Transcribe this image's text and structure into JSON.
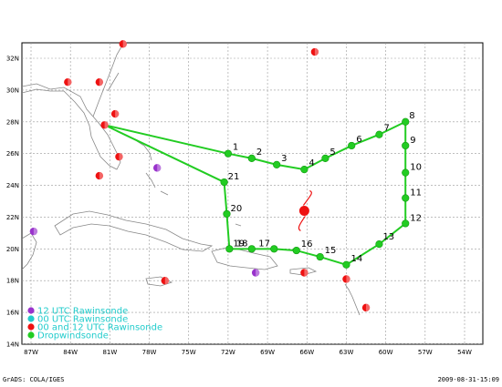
{
  "map": {
    "lon_labels": [
      "87W",
      "84W",
      "81W",
      "78W",
      "75W",
      "72W",
      "69W",
      "66W",
      "63W",
      "60W",
      "57W",
      "54W"
    ],
    "lat_labels": [
      "32N",
      "30N",
      "28N",
      "26N",
      "24N",
      "22N",
      "20N",
      "18N",
      "16N",
      "14N"
    ],
    "track_color": "#22cc22",
    "waypoints": [
      {
        "label": "1",
        "lat": 26.0,
        "lon": -72.0
      },
      {
        "label": "2",
        "lat": 25.7,
        "lon": -70.2
      },
      {
        "label": "3",
        "lat": 25.3,
        "lon": -68.3
      },
      {
        "label": "4",
        "lat": 25.0,
        "lon": -66.2
      },
      {
        "label": "5",
        "lat": 25.7,
        "lon": -64.6
      },
      {
        "label": "6",
        "lat": 26.5,
        "lon": -62.6
      },
      {
        "label": "7",
        "lat": 27.2,
        "lon": -60.5
      },
      {
        "label": "8",
        "lat": 28.0,
        "lon": -58.5
      },
      {
        "label": "9",
        "lat": 26.5,
        "lon": -58.5
      },
      {
        "label": "10",
        "lat": 24.8,
        "lon": -58.5
      },
      {
        "label": "11",
        "lat": 23.2,
        "lon": -58.5
      },
      {
        "label": "12",
        "lat": 21.6,
        "lon": -58.5
      },
      {
        "label": "13",
        "lat": 20.3,
        "lon": -60.5
      },
      {
        "label": "14",
        "lat": 19.0,
        "lon": -63.0
      },
      {
        "label": "15",
        "lat": 19.5,
        "lon": -65.0
      },
      {
        "label": "16",
        "lat": 19.9,
        "lon": -66.8
      },
      {
        "label": "17",
        "lat": 20.0,
        "lon": -68.5
      },
      {
        "label": "18",
        "lat": 20.0,
        "lon": -70.2
      },
      {
        "label": "19",
        "lat": 20.0,
        "lon": -71.9
      },
      {
        "label": "20",
        "lat": 22.2,
        "lon": -72.1
      },
      {
        "label": "21",
        "lat": 24.2,
        "lon": -72.3
      }
    ],
    "origin": {
      "lat": 27.8,
      "lon": -81.4
    },
    "storm": {
      "lat": 22.4,
      "lon": -66.2
    },
    "stations_00_12": [
      {
        "lat": 32.9,
        "lon": -80.0
      },
      {
        "lat": 32.4,
        "lon": -65.4
      },
      {
        "lat": 30.5,
        "lon": -84.2
      },
      {
        "lat": 30.5,
        "lon": -81.8
      },
      {
        "lat": 28.5,
        "lon": -80.6
      },
      {
        "lat": 27.8,
        "lon": -81.4
      },
      {
        "lat": 25.8,
        "lon": -80.3
      },
      {
        "lat": 24.6,
        "lon": -81.8
      },
      {
        "lat": 18.0,
        "lon": -76.8
      },
      {
        "lat": 18.5,
        "lon": -66.2
      },
      {
        "lat": 18.1,
        "lon": -63.0
      },
      {
        "lat": 16.3,
        "lon": -61.5
      }
    ],
    "stations_12": [
      {
        "lat": 25.1,
        "lon": -77.4
      },
      {
        "lat": 21.1,
        "lon": -86.8
      },
      {
        "lat": 18.5,
        "lon": -69.9
      }
    ]
  },
  "legend": {
    "items": [
      {
        "label": "12 UTC Rawinsonde",
        "marker": "#9933cc",
        "text": "#22cccc"
      },
      {
        "label": "00 UTC Rawinsonde",
        "marker": "#22cccc",
        "text": "#22cccc"
      },
      {
        "label": "00 and 12 UTC Rawinsonde",
        "marker": "#ee1111",
        "text": "#22cccc"
      },
      {
        "label": "Dropwindsonde",
        "marker": "#22cc22",
        "text": "#22cccc"
      }
    ]
  },
  "footer": {
    "left": "GrADS: COLA/IGES",
    "right": "2009-08-31-15:09"
  }
}
